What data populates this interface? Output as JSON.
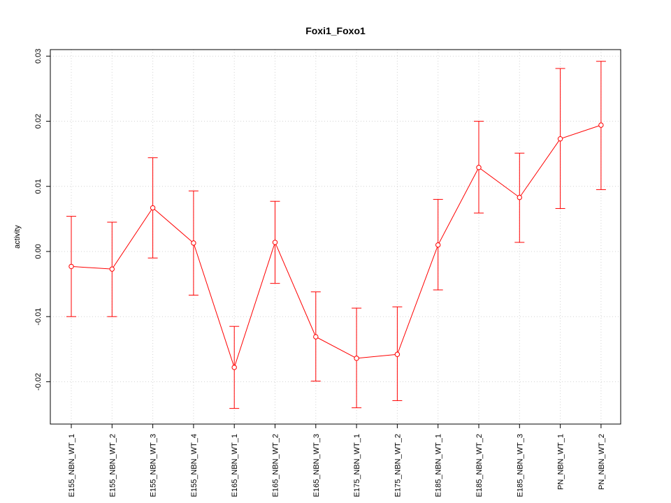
{
  "chart_data": {
    "type": "line",
    "title": "Foxi1_Foxo1",
    "xlabel": "",
    "ylabel": "activity",
    "ylim": [
      -0.0265,
      0.031
    ],
    "yticks": [
      -0.02,
      -0.01,
      0.0,
      0.01,
      0.02,
      0.03
    ],
    "ytick_labels": [
      "-0.02",
      "-0.01",
      "0.00",
      "0.01",
      "0.02",
      "0.03"
    ],
    "grid": true,
    "categories": [
      "E155_NBN_WT_1",
      "E155_NBN_WT_2",
      "E155_NBN_WT_3",
      "E155_NBN_WT_4",
      "E165_NBN_WT_1",
      "E165_NBN_WT_2",
      "E165_NBN_WT_3",
      "E175_NBN_WT_1",
      "E175_NBN_WT_2",
      "E185_NBN_WT_1",
      "E185_NBN_WT_2",
      "E185_NBN_WT_3",
      "PN_NBN_WT_1",
      "PN_NBN_WT_2"
    ],
    "series": [
      {
        "color": "#ff0000",
        "values": [
          -0.0023,
          -0.0027,
          0.0067,
          0.0013,
          -0.0178,
          0.0014,
          -0.0131,
          -0.0164,
          -0.0158,
          0.001,
          0.0129,
          0.0083,
          0.0173,
          0.0194
        ],
        "upper": [
          0.0054,
          0.0045,
          0.0144,
          0.0093,
          -0.0115,
          0.0077,
          -0.0062,
          -0.0087,
          -0.0085,
          0.008,
          0.02,
          0.0151,
          0.0281,
          0.0292
        ],
        "lower": [
          -0.01,
          -0.01,
          -0.001,
          -0.0067,
          -0.0241,
          -0.0049,
          -0.0199,
          -0.024,
          -0.0229,
          -0.0059,
          0.0059,
          0.0014,
          0.0066,
          0.0095
        ]
      }
    ]
  }
}
